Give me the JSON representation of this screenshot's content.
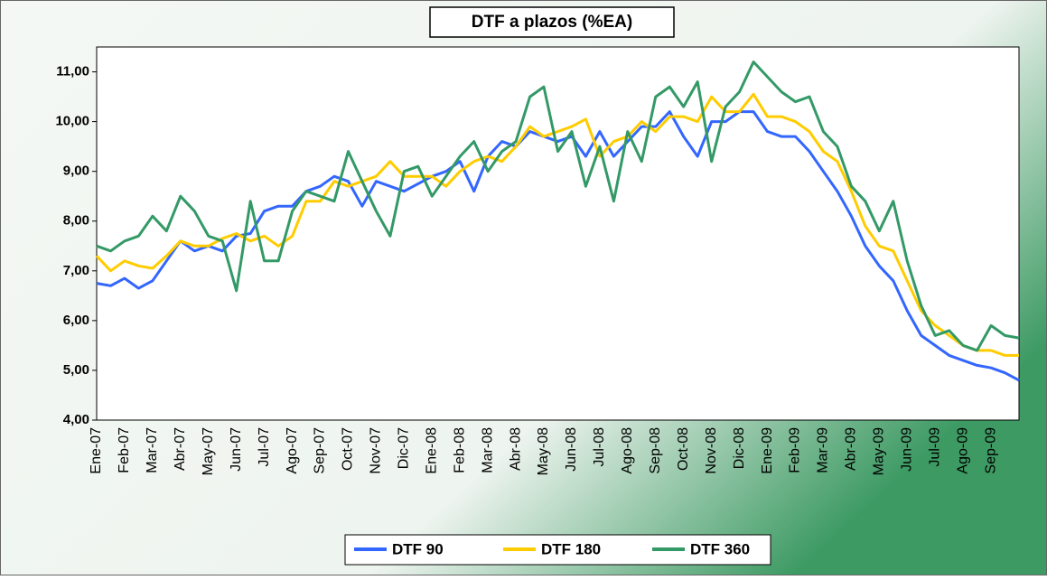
{
  "chart_data": {
    "type": "line",
    "title": "DTF a plazos (%EA)",
    "categories": [
      "Ene-07",
      null,
      "Feb-07",
      null,
      "Mar-07",
      null,
      "Abr-07",
      null,
      "May-07",
      null,
      "Jun-07",
      null,
      "Jul-07",
      null,
      "Ago-07",
      null,
      "Sep-07",
      null,
      "Oct-07",
      null,
      "Nov-07",
      null,
      "Dic-07",
      null,
      "Ene-08",
      null,
      "Feb-08",
      null,
      "Mar-08",
      null,
      "Abr-08",
      null,
      "May-08",
      null,
      "Jun-08",
      null,
      "Jul-08",
      null,
      "Ago-08",
      null,
      "Sep-08",
      null,
      "Oct-08",
      null,
      "Nov-08",
      null,
      "Dic-08",
      null,
      "Ene-09",
      null,
      "Feb-09",
      null,
      "Mar-09",
      null,
      "Abr-09",
      null,
      "May-09",
      null,
      "Jun-09",
      null,
      "Jul-09",
      null,
      "Ago-09",
      null,
      "Sep-09",
      null,
      null
    ],
    "series": [
      {
        "name": "DTF 90",
        "color": "#3366ff",
        "values": [
          6.75,
          6.7,
          6.85,
          6.65,
          6.8,
          7.2,
          7.6,
          7.4,
          7.5,
          7.4,
          7.7,
          7.75,
          8.2,
          8.3,
          8.3,
          8.6,
          8.7,
          8.9,
          8.8,
          8.3,
          8.8,
          8.7,
          8.6,
          8.75,
          8.9,
          9.0,
          9.2,
          8.6,
          9.3,
          9.6,
          9.5,
          9.8,
          9.7,
          9.6,
          9.7,
          9.3,
          9.8,
          9.3,
          9.6,
          9.9,
          9.9,
          10.2,
          9.7,
          9.3,
          10.0,
          10.0,
          10.2,
          10.2,
          9.8,
          9.7,
          9.7,
          9.4,
          9.0,
          8.6,
          8.1,
          7.5,
          7.1,
          6.8,
          6.2,
          5.7,
          5.5,
          5.3,
          5.2,
          5.1,
          5.05,
          4.95,
          4.8
        ]
      },
      {
        "name": "DTF 180",
        "color": "#ffcc00",
        "values": [
          7.3,
          7.0,
          7.2,
          7.1,
          7.05,
          7.3,
          7.6,
          7.5,
          7.5,
          7.65,
          7.75,
          7.6,
          7.7,
          7.5,
          7.7,
          8.4,
          8.4,
          8.8,
          8.7,
          8.8,
          8.9,
          9.2,
          8.9,
          8.9,
          8.9,
          8.7,
          9.0,
          9.2,
          9.3,
          9.2,
          9.5,
          9.9,
          9.7,
          9.8,
          9.9,
          10.05,
          9.3,
          9.6,
          9.7,
          10.0,
          9.8,
          10.1,
          10.1,
          10.0,
          10.5,
          10.2,
          10.2,
          10.55,
          10.1,
          10.1,
          10.0,
          9.8,
          9.4,
          9.2,
          8.6,
          7.9,
          7.5,
          7.4,
          6.8,
          6.2,
          5.9,
          5.7,
          5.5,
          5.4,
          5.4,
          5.3,
          5.3
        ]
      },
      {
        "name": "DTF 360",
        "color": "#339966",
        "values": [
          7.5,
          7.4,
          7.6,
          7.7,
          8.1,
          7.8,
          8.5,
          8.2,
          7.7,
          7.6,
          6.6,
          8.4,
          7.2,
          7.2,
          8.2,
          8.6,
          8.5,
          8.4,
          9.4,
          8.8,
          8.2,
          7.7,
          9.0,
          9.1,
          8.5,
          8.9,
          9.3,
          9.6,
          9.0,
          9.4,
          9.6,
          10.5,
          10.7,
          9.4,
          9.8,
          8.7,
          9.5,
          8.4,
          9.8,
          9.2,
          10.5,
          10.7,
          10.3,
          10.8,
          9.2,
          10.3,
          10.6,
          11.2,
          10.9,
          10.6,
          10.4,
          10.5,
          9.8,
          9.5,
          8.7,
          8.4,
          7.8,
          8.4,
          7.2,
          6.3,
          5.7,
          5.8,
          5.5,
          5.4,
          5.9,
          5.7,
          5.65
        ]
      }
    ],
    "ylim": [
      4,
      11.5
    ],
    "yticks": [
      {
        "value": 4,
        "label": "4,00"
      },
      {
        "value": 5,
        "label": "5,00"
      },
      {
        "value": 6,
        "label": "6,00"
      },
      {
        "value": 7,
        "label": "7,00"
      },
      {
        "value": 8,
        "label": "8,00"
      },
      {
        "value": 9,
        "label": "9,00"
      },
      {
        "value": 10,
        "label": "10,00"
      },
      {
        "value": 11,
        "label": "11,00"
      }
    ]
  }
}
